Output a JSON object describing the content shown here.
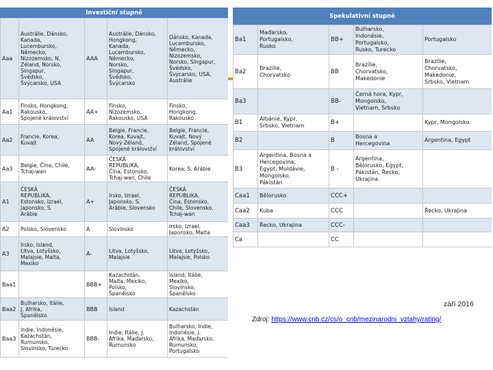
{
  "investment": {
    "title": "Investiční stupně",
    "rows": [
      {
        "rating": "Aaa",
        "countries": "Austrálie, Dánsko,\nKanada,\nLucembursko,\nNěmecko,\nNizozemsko, N.\nZéland, Norsko,\nSingapur,\nŠvédsko,\nŠvýcarsko, USA",
        "rating2": "AAA",
        "countries2": "Austrálie, Dánsko,\nHongkong,\nKanada,\nLucembursko,\nNěmecko,\nNorsko,\nSingapur,\nŠvédsko,\nŠvýcarsko",
        "countries3": "Dánsko, Kanada,\nLucembursko,\nNěmecko,\nNizozemsko,\nNorsko, Singapur,\nŠvédsko,\nŠvýcarsko, USA,\nAustrálie"
      },
      {
        "rating": "Aa1",
        "countries": "Finsko, Hongkong,\nRakousko,\nSpojené království",
        "rating2": "AA+",
        "countries2": "Finsko,\nNizozemsko,\nRakousko, USA",
        "countries3": "Finsko,\nHongkong,\nRakousko"
      },
      {
        "rating": "Aa2",
        "countries": "Francie, Korea,\nKuvajt",
        "rating2": "AA",
        "countries2": "Belgie, Francie,\nKorea, Kuvajt,\nNový Zéland,\nSpojené království",
        "countries3": "Belgie, Francie,\nKuvajt, Nový\nZéland, Spojené\nkrálovství"
      },
      {
        "rating": "Aa3",
        "countries": "Belgie, Čína, Chile,\nTchaj-wan",
        "rating2": "AA-",
        "countries2": "ČESKÁ\nREPUBLIKA,\nČína, Estonsko,\nTchaj-wan, Chile",
        "countries3": "Korea, S. Arábie"
      },
      {
        "rating": "A1",
        "countries": "ČESKÁ\nREPUBLIKA,\nEstonsko, Izrael,\nJaponsko, S.\nArábie",
        "rating2": "A+",
        "countries2": "Irsko, Izrael,\nJaponsko, S.\nArábie, Slovensko",
        "countries3": "ČESKÁ\nREPUBLIKA,\nČína, Estonsko,\nChile, Slovensko,\nTchaj-wan"
      },
      {
        "rating": "A2",
        "countries": "Polsko, Slovensko",
        "rating2": "A",
        "countries2": "Slovinsko",
        "countries3": "Irsko, Izrael,\nJaponsko, Malta"
      },
      {
        "rating": "A3",
        "countries": "Irsko, Island,\nLitva, Lotyšsko,\nMalajsie, Malta,\nMexiko",
        "rating2": "A-",
        "countries2": "Litva, Lotyšsko,\nMalajsie",
        "countries3": "Litva, Lotyšsko,\nMalajsie, Polsko"
      },
      {
        "rating": "Baa1",
        "countries": "",
        "rating2": "BBB+",
        "countries2": "Kazachstán,\nMalta, Mexiko,\nPolsko,\nŠpanělsko",
        "countries3": "Island, Itálie,\nMexiko,\nSlovinsko,\nŠpanělsko"
      },
      {
        "rating": "Baa2",
        "countries": "Bulharsko, Itálie,\nJ. Afrika,\nŠpanělsko",
        "rating2": "BBB",
        "countries2": "Island",
        "countries3": "Kazachstán"
      },
      {
        "rating": "Baa3",
        "countries": "Indie, Indonésie,\nKazachstán,\nRumunsko,\nSlovinsko, Turecko",
        "rating2": "BBB-",
        "countries2": "Indie, Itálie, J.\nAfrika, Maďarsko,\nRumunsko",
        "countries3": "Bulharsko, Indie,\nIndonésie, J.\nAfrika, Maďarsko,\nRumunsko,\nPortugalsko"
      }
    ]
  },
  "speculative": {
    "title": "Spekulativní stupně",
    "rows": [
      {
        "rating": "Ba1",
        "countries": "Maďarsko,\nPortugalsko,\nRusko",
        "rating2": "BB+",
        "countries2": "Bulharsko,\nIndonésie,\nPortugalsko,\nRusko, Turecko",
        "countries3": "Portugalsko"
      },
      {
        "rating": "Ba2",
        "countries": "Brazílie,\nChorvatsko",
        "rating2": "BB",
        "countries2": "Brazílie,\nChorvatsko,\nMakedonie",
        "countries3": "Brazílie,\nChorvatsko,\nMakedonie,\nSrbsko, Vietnam"
      },
      {
        "rating": "Ba3",
        "countries": "",
        "rating2": "BB-",
        "countries2": "Černá hora, Kypr,\nMongolsko,\nVietnam, Srbsko",
        "countries3": ""
      },
      {
        "rating": "B1",
        "countries": "Albánie, Kypr,\nSrbsko, Vietnam",
        "rating2": "B+",
        "countries2": "",
        "countries3": "Kypr, Mongolsko"
      },
      {
        "rating": "B2",
        "countries": "",
        "rating2": "B",
        "countries2": "Bosna a\nHercegovina",
        "countries3": "Argentina, Egypt"
      },
      {
        "rating": "B3",
        "countries": "Argentina, Bosna a\nHercegovina,\nEgypt, Moldávie,\nMongolsko,\nPákistán",
        "rating2": "B -",
        "countries2": "Argentina,\nBělorusko, Egypt,\nPákistán, Řecko,\nUkrajina",
        "countries3": ""
      },
      {
        "rating": "Caa1",
        "countries": "Bělorusko",
        "rating2": "CCC+",
        "countries2": "",
        "countries3": ""
      },
      {
        "rating": "Caa2",
        "countries": "Kuba",
        "rating2": "CCC",
        "countries2": "",
        "countries3": "Řecko, Ukrajina"
      },
      {
        "rating": "Caa3",
        "countries": "Řecko, Ukrajina",
        "rating2": "CCC-",
        "countries2": "",
        "countries3": ""
      },
      {
        "rating": "Ca",
        "countries": "",
        "rating2": "CC",
        "countries2": "",
        "countries3": ""
      }
    ]
  },
  "footer": {
    "date": "září 2016",
    "source_prefix": "Zdroj: ",
    "source_link": "https://www.cnb.cz/cs/o_cnb/mezinarodni_vztahy/rating/"
  },
  "colors": {
    "header": "#4f81bd",
    "alt_row": "#dde6f1",
    "accent": "#b9a33a",
    "link": "#0000ee"
  }
}
